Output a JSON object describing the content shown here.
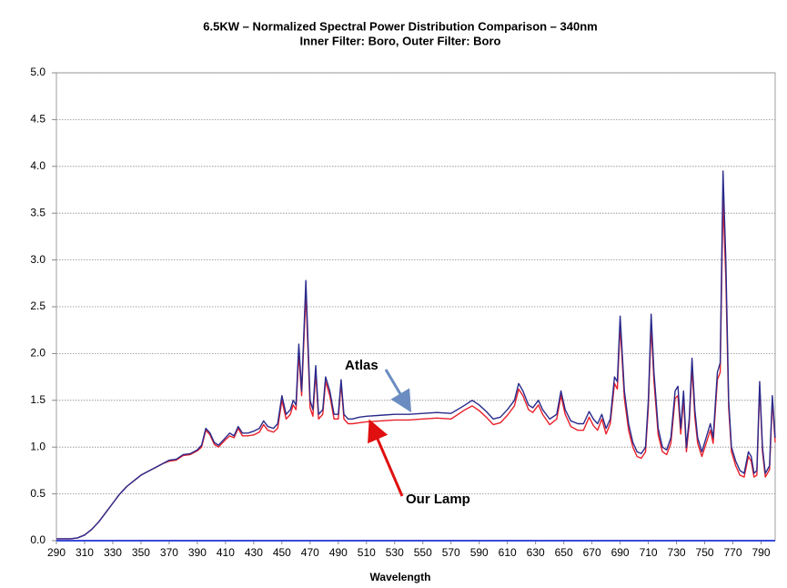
{
  "chart_data": {
    "type": "line",
    "title": "6.5KW – Normalized Spectral Power Distribution Comparison – 340nm",
    "subtitle": "Inner Filter: Boro, Outer Filter: Boro",
    "x_label": "Wavelength",
    "x": [
      290,
      300,
      305,
      310,
      315,
      320,
      325,
      330,
      335,
      340,
      345,
      350,
      355,
      360,
      365,
      370,
      375,
      380,
      385,
      390,
      393,
      396,
      399,
      402,
      405,
      410,
      413,
      416,
      419,
      422,
      426,
      430,
      434,
      437,
      440,
      444,
      447,
      450,
      453,
      456,
      458,
      460,
      462,
      464,
      467,
      470,
      472,
      474,
      476,
      479,
      481,
      484,
      487,
      490,
      492,
      494,
      497,
      500,
      505,
      510,
      520,
      530,
      540,
      550,
      560,
      570,
      580,
      585,
      590,
      595,
      600,
      605,
      610,
      615,
      618,
      621,
      625,
      628,
      632,
      635,
      640,
      645,
      648,
      651,
      655,
      660,
      664,
      668,
      671,
      674,
      677,
      680,
      683,
      686,
      688,
      690,
      693,
      696,
      699,
      702,
      705,
      708,
      710,
      712,
      714,
      717,
      720,
      723,
      726,
      729,
      731,
      733,
      735,
      737,
      739,
      741,
      743,
      745,
      748,
      751,
      754,
      756,
      759,
      761,
      763,
      765,
      767,
      769,
      772,
      775,
      778,
      781,
      783,
      785,
      787,
      789,
      791,
      793,
      796,
      798,
      800
    ],
    "series": [
      {
        "name": "Atlas",
        "color": "#2a2a8c",
        "values": [
          0.02,
          0.02,
          0.03,
          0.06,
          0.12,
          0.2,
          0.3,
          0.4,
          0.5,
          0.58,
          0.64,
          0.7,
          0.74,
          0.78,
          0.82,
          0.86,
          0.87,
          0.92,
          0.93,
          0.97,
          1.02,
          1.2,
          1.15,
          1.05,
          1.02,
          1.1,
          1.15,
          1.12,
          1.22,
          1.15,
          1.15,
          1.17,
          1.2,
          1.28,
          1.22,
          1.2,
          1.25,
          1.55,
          1.35,
          1.4,
          1.5,
          1.45,
          2.1,
          1.6,
          2.78,
          1.5,
          1.4,
          1.87,
          1.35,
          1.4,
          1.75,
          1.6,
          1.35,
          1.35,
          1.72,
          1.35,
          1.3,
          1.3,
          1.32,
          1.33,
          1.34,
          1.35,
          1.35,
          1.36,
          1.37,
          1.36,
          1.45,
          1.5,
          1.45,
          1.38,
          1.3,
          1.32,
          1.4,
          1.5,
          1.68,
          1.6,
          1.45,
          1.42,
          1.5,
          1.4,
          1.3,
          1.35,
          1.6,
          1.4,
          1.28,
          1.25,
          1.25,
          1.38,
          1.3,
          1.25,
          1.35,
          1.2,
          1.3,
          1.75,
          1.7,
          2.4,
          1.6,
          1.25,
          1.05,
          0.95,
          0.93,
          1.0,
          1.5,
          2.42,
          1.8,
          1.2,
          1.0,
          0.97,
          1.1,
          1.6,
          1.65,
          1.2,
          1.6,
          1.0,
          1.3,
          1.95,
          1.4,
          1.1,
          0.95,
          1.1,
          1.25,
          1.1,
          1.8,
          1.9,
          3.95,
          3.0,
          1.5,
          1.0,
          0.85,
          0.75,
          0.72,
          0.95,
          0.9,
          0.72,
          0.75,
          1.7,
          1.0,
          0.72,
          0.8,
          1.55,
          1.1
        ]
      },
      {
        "name": "Our Lamp",
        "color": "#e8202a",
        "values": [
          0.02,
          0.02,
          0.03,
          0.06,
          0.12,
          0.2,
          0.3,
          0.4,
          0.5,
          0.58,
          0.64,
          0.7,
          0.74,
          0.78,
          0.82,
          0.85,
          0.86,
          0.91,
          0.92,
          0.96,
          1.0,
          1.18,
          1.13,
          1.03,
          1.0,
          1.08,
          1.12,
          1.1,
          1.2,
          1.12,
          1.12,
          1.13,
          1.16,
          1.24,
          1.18,
          1.16,
          1.2,
          1.5,
          1.3,
          1.35,
          1.45,
          1.4,
          2.0,
          1.55,
          2.65,
          1.42,
          1.33,
          1.8,
          1.3,
          1.35,
          1.7,
          1.55,
          1.3,
          1.3,
          1.68,
          1.3,
          1.25,
          1.25,
          1.26,
          1.27,
          1.28,
          1.29,
          1.29,
          1.3,
          1.31,
          1.3,
          1.4,
          1.44,
          1.39,
          1.32,
          1.24,
          1.26,
          1.34,
          1.44,
          1.62,
          1.55,
          1.4,
          1.37,
          1.45,
          1.35,
          1.24,
          1.3,
          1.55,
          1.35,
          1.22,
          1.18,
          1.18,
          1.32,
          1.23,
          1.18,
          1.3,
          1.14,
          1.25,
          1.68,
          1.62,
          2.3,
          1.52,
          1.18,
          1.0,
          0.9,
          0.88,
          0.95,
          1.42,
          2.3,
          1.7,
          1.13,
          0.95,
          0.92,
          1.04,
          1.52,
          1.55,
          1.14,
          1.52,
          0.95,
          1.24,
          1.85,
          1.32,
          1.04,
          0.9,
          1.04,
          1.18,
          1.04,
          1.72,
          1.8,
          3.65,
          2.8,
          1.42,
          0.95,
          0.8,
          0.7,
          0.68,
          0.9,
          0.85,
          0.68,
          0.7,
          1.65,
          0.95,
          0.68,
          0.76,
          1.5,
          1.05
        ]
      }
    ],
    "annotations": [
      "Atlas",
      "Our Lamp"
    ],
    "xlim": [
      290,
      800
    ],
    "ylim": [
      0,
      5
    ],
    "xticks": [
      290,
      310,
      330,
      350,
      370,
      390,
      410,
      430,
      450,
      470,
      490,
      510,
      530,
      550,
      570,
      590,
      610,
      630,
      650,
      670,
      690,
      710,
      730,
      750,
      770,
      790
    ],
    "yticks": [
      {
        "value": 0,
        "label": "0.0"
      },
      {
        "value": 0.5,
        "label": "0.5"
      },
      {
        "value": 1,
        "label": "1.0"
      },
      {
        "value": 1.5,
        "label": "1.5"
      },
      {
        "value": 2,
        "label": "2.0"
      },
      {
        "value": 2.5,
        "label": "2.5"
      },
      {
        "value": 3,
        "label": "3.0"
      },
      {
        "value": 3.5,
        "label": "3.5"
      },
      {
        "value": 4,
        "label": "4.0"
      },
      {
        "value": 4.5,
        "label": "4.5"
      },
      {
        "value": 5,
        "label": "5.0"
      }
    ],
    "grid": true
  }
}
